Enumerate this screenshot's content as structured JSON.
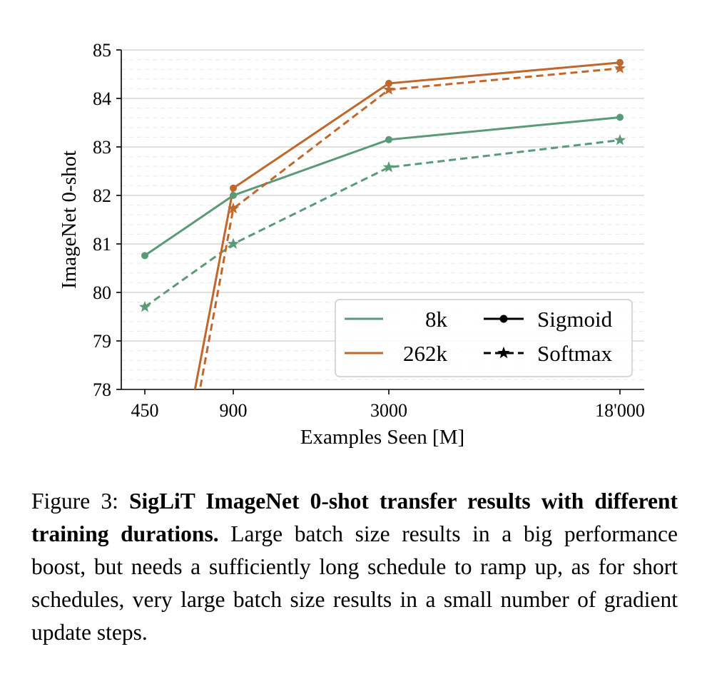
{
  "chart_data": {
    "type": "line",
    "xlabel": "Examples Seen [M]",
    "ylabel": "ImageNet 0-shot",
    "x_tick_labels": [
      "450",
      "900",
      "3000",
      "18'000"
    ],
    "y_ticks": [
      78,
      79,
      80,
      81,
      82,
      83,
      84,
      85
    ],
    "ylim": [
      78,
      85
    ],
    "grid": "horizontal",
    "legend_placement": "lower-right",
    "series": [
      {
        "batch": "8k",
        "loss": "Sigmoid",
        "color": "#5b9a78",
        "style": "solid",
        "marker": "circle",
        "values": [
          80.76,
          82.0,
          83.15,
          83.61
        ]
      },
      {
        "batch": "8k",
        "loss": "Softmax",
        "color": "#5b9a78",
        "style": "dashed",
        "marker": "star",
        "values": [
          79.7,
          81.0,
          82.58,
          83.14
        ]
      },
      {
        "batch": "262k",
        "loss": "Sigmoid",
        "color": "#c0672b",
        "style": "solid",
        "marker": "circle",
        "values": [
          null,
          82.15,
          84.31,
          84.74
        ]
      },
      {
        "batch": "262k",
        "loss": "Softmax",
        "color": "#c0672b",
        "style": "dashed",
        "marker": "star",
        "values": [
          null,
          81.73,
          84.18,
          84.62
        ]
      }
    ],
    "legend": {
      "batch_entries": [
        {
          "label": "8k",
          "color": "#5b9a78"
        },
        {
          "label": "262k",
          "color": "#c0672b"
        }
      ],
      "loss_entries": [
        {
          "label": "Sigmoid",
          "style": "solid",
          "marker": "circle"
        },
        {
          "label": "Softmax",
          "style": "dashed",
          "marker": "star"
        }
      ]
    }
  },
  "caption": {
    "prefix": "Figure 3: ",
    "bold": "SigLiT ImageNet 0-shot transfer results with different training durations.",
    "rest": " Large batch size results in a big performance boost, but needs a sufficiently long schedule to ramp up, as for short schedules, very large batch size results in a small number of gradient update steps."
  }
}
